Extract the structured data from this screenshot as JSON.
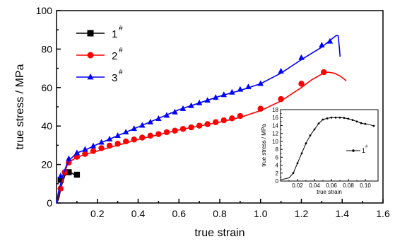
{
  "chart_data": [
    {
      "type": "line",
      "xlabel": "true strain",
      "ylabel": "true stress / MPa",
      "xlim": [
        0,
        1.6
      ],
      "ylim": [
        0,
        100
      ],
      "xticks": [
        "0.2",
        "0.4",
        "0.6",
        "0.8",
        "1.0",
        "1.2",
        "1.4",
        "1.6"
      ],
      "yticks": [
        "0",
        "20",
        "40",
        "60",
        "80",
        "100"
      ],
      "grid": false,
      "legend_position": "top-left",
      "series": [
        {
          "name": "1",
          "superscript": "#",
          "color": "#000000",
          "marker": "square",
          "curve": [
            [
              0,
              0
            ],
            [
              0.01,
              2
            ],
            [
              0.02,
              7
            ],
            [
              0.03,
              11
            ],
            [
              0.04,
              14
            ],
            [
              0.05,
              15.5
            ],
            [
              0.06,
              16
            ],
            [
              0.07,
              15.8
            ],
            [
              0.08,
              15.2
            ],
            [
              0.09,
              14.6
            ],
            [
              0.1,
              14.2
            ]
          ],
          "markers": [
            [
              0.02,
              12
            ],
            [
              0.06,
              16
            ],
            [
              0.1,
              14.7
            ]
          ]
        },
        {
          "name": "2",
          "superscript": "#",
          "color": "#ff0000",
          "marker": "circle",
          "curve": [
            [
              0,
              0
            ],
            [
              0.005,
              2
            ],
            [
              0.01,
              5
            ],
            [
              0.02,
              8
            ],
            [
              0.03,
              12
            ],
            [
              0.04,
              16
            ],
            [
              0.05,
              19
            ],
            [
              0.06,
              21
            ],
            [
              0.08,
              22.5
            ],
            [
              0.1,
              23.8
            ],
            [
              0.15,
              25.5
            ],
            [
              0.2,
              27
            ],
            [
              0.3,
              30
            ],
            [
              0.4,
              33
            ],
            [
              0.5,
              35.5
            ],
            [
              0.6,
              38
            ],
            [
              0.7,
              40
            ],
            [
              0.8,
              42
            ],
            [
              0.9,
              44.5
            ],
            [
              1.0,
              48
            ],
            [
              1.1,
              53
            ],
            [
              1.2,
              60
            ],
            [
              1.25,
              64
            ],
            [
              1.3,
              67
            ],
            [
              1.33,
              68
            ],
            [
              1.36,
              67.5
            ],
            [
              1.39,
              66
            ],
            [
              1.42,
              63.5
            ]
          ],
          "markers": [
            [
              0.02,
              7.5
            ],
            [
              0.04,
              16
            ],
            [
              0.06,
              21
            ],
            [
              0.1,
              24
            ],
            [
              0.14,
              25.5
            ],
            [
              0.18,
              27
            ],
            [
              0.22,
              28.5
            ],
            [
              0.26,
              29.8
            ],
            [
              0.3,
              30.8
            ],
            [
              0.34,
              32
            ],
            [
              0.38,
              33
            ],
            [
              0.42,
              34
            ],
            [
              0.46,
              35
            ],
            [
              0.5,
              35.8
            ],
            [
              0.54,
              36.8
            ],
            [
              0.58,
              37.6
            ],
            [
              0.62,
              38.5
            ],
            [
              0.66,
              39.3
            ],
            [
              0.7,
              40.2
            ],
            [
              0.74,
              41
            ],
            [
              0.78,
              42
            ],
            [
              0.82,
              43
            ],
            [
              0.86,
              44
            ],
            [
              0.9,
              45.2
            ],
            [
              1.0,
              49
            ],
            [
              1.1,
              54
            ],
            [
              1.2,
              62
            ],
            [
              1.31,
              68
            ]
          ]
        },
        {
          "name": "3",
          "superscript": "#",
          "color": "#0000ff",
          "marker": "triangle",
          "curve": [
            [
              0,
              0
            ],
            [
              0.005,
              3
            ],
            [
              0.01,
              6
            ],
            [
              0.02,
              10
            ],
            [
              0.03,
              14
            ],
            [
              0.04,
              17
            ],
            [
              0.05,
              20
            ],
            [
              0.06,
              22
            ],
            [
              0.08,
              24
            ],
            [
              0.1,
              26
            ],
            [
              0.15,
              28
            ],
            [
              0.2,
              30.5
            ],
            [
              0.3,
              35
            ],
            [
              0.4,
              39.5
            ],
            [
              0.5,
              44
            ],
            [
              0.6,
              48.5
            ],
            [
              0.7,
              52
            ],
            [
              0.8,
              55.5
            ],
            [
              0.9,
              58.5
            ],
            [
              1.0,
              62
            ],
            [
              1.1,
              67.5
            ],
            [
              1.2,
              74.5
            ],
            [
              1.3,
              81
            ],
            [
              1.34,
              84.5
            ],
            [
              1.37,
              87
            ],
            [
              1.38,
              87
            ],
            [
              1.385,
              82
            ],
            [
              1.39,
              76
            ]
          ],
          "markers": [
            [
              0.02,
              14
            ],
            [
              0.06,
              23
            ],
            [
              0.1,
              26
            ],
            [
              0.14,
              27.8
            ],
            [
              0.18,
              29.6
            ],
            [
              0.22,
              31.5
            ],
            [
              0.26,
              33.2
            ],
            [
              0.3,
              35
            ],
            [
              0.34,
              36.8
            ],
            [
              0.38,
              38.6
            ],
            [
              0.42,
              40.3
            ],
            [
              0.46,
              42
            ],
            [
              0.5,
              43.8
            ],
            [
              0.54,
              45.5
            ],
            [
              0.58,
              47.2
            ],
            [
              0.62,
              49
            ],
            [
              0.66,
              50.5
            ],
            [
              0.7,
              52
            ],
            [
              0.74,
              53.3
            ],
            [
              0.78,
              54.8
            ],
            [
              0.82,
              56.2
            ],
            [
              0.86,
              57.5
            ],
            [
              0.9,
              59
            ],
            [
              0.94,
              60.3
            ],
            [
              1.0,
              62
            ],
            [
              1.1,
              68.5
            ],
            [
              1.2,
              75.5
            ],
            [
              1.3,
              82
            ],
            [
              1.34,
              84
            ]
          ]
        }
      ]
    },
    {
      "type": "line",
      "inset": true,
      "xlabel": "true strain",
      "ylabel": "true stress / MPa",
      "xlim": [
        0,
        0.115
      ],
      "ylim": [
        0,
        18
      ],
      "xticks": [
        "0.02",
        "0.04",
        "0.06",
        "0.08",
        "0.10"
      ],
      "yticks": [
        "0",
        "2",
        "4",
        "6",
        "8",
        "10",
        "12",
        "14",
        "16",
        "18"
      ],
      "legend_position": "right",
      "series": [
        {
          "name": "1",
          "superscript": "#",
          "color": "#000000",
          "marker": "dot",
          "curve": [
            [
              0.0,
              0.3
            ],
            [
              0.01,
              0.8
            ],
            [
              0.015,
              2
            ],
            [
              0.02,
              4.5
            ],
            [
              0.025,
              7
            ],
            [
              0.03,
              9.5
            ],
            [
              0.035,
              11.5
            ],
            [
              0.04,
              13
            ],
            [
              0.045,
              14.5
            ],
            [
              0.05,
              15.5
            ],
            [
              0.055,
              15.8
            ],
            [
              0.06,
              16
            ],
            [
              0.065,
              16
            ],
            [
              0.07,
              16
            ],
            [
              0.075,
              15.9
            ],
            [
              0.08,
              15.7
            ],
            [
              0.085,
              15.4
            ],
            [
              0.09,
              15
            ],
            [
              0.095,
              14.6
            ],
            [
              0.1,
              14.4
            ],
            [
              0.105,
              14.2
            ],
            [
              0.11,
              13.9
            ]
          ],
          "markers": [
            [
              0.015,
              2
            ],
            [
              0.02,
              4.5
            ],
            [
              0.025,
              7
            ],
            [
              0.03,
              9.5
            ],
            [
              0.035,
              11.5
            ],
            [
              0.04,
              13
            ],
            [
              0.045,
              14.5
            ],
            [
              0.05,
              15.5
            ],
            [
              0.055,
              15.8
            ],
            [
              0.06,
              16
            ],
            [
              0.065,
              16
            ],
            [
              0.07,
              16
            ],
            [
              0.075,
              15.9
            ],
            [
              0.08,
              15.7
            ],
            [
              0.085,
              15.4
            ],
            [
              0.09,
              15
            ],
            [
              0.095,
              14.6
            ],
            [
              0.1,
              14.4
            ],
            [
              0.11,
              13.9
            ]
          ]
        }
      ]
    }
  ]
}
